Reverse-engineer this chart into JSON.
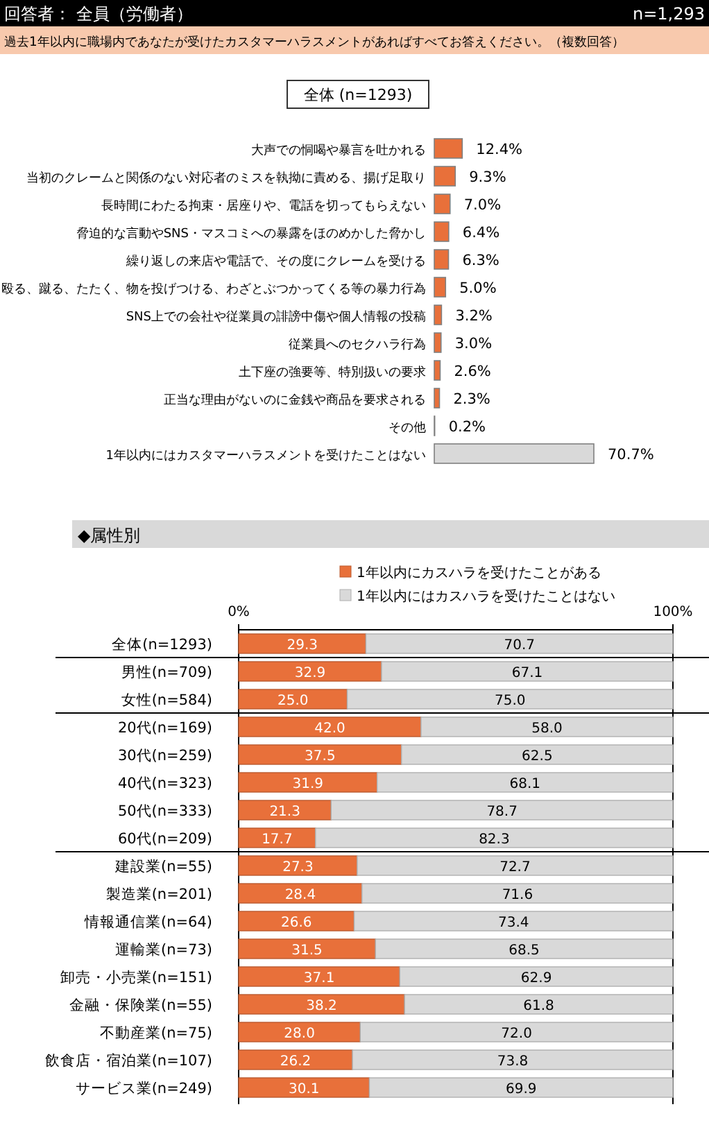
{
  "chart_data": [
    {
      "type": "bar",
      "orientation": "horizontal",
      "title": "全体 (n=1293)",
      "annotations": [
        "回答者： 全員（労働者）",
        "n=1,293",
        "過去1年以内に職場内であなたが受けたカスタマーハラスメントがあればすべてお答えください。（複数回答）"
      ],
      "categories": [
        "大声での恫喝や暴言を吐かれる",
        "当初のクレームと関係のない対応者のミスを執拗に責める、揚げ足取り",
        "長時間にわたる拘束・居座りや、電話を切ってもらえない",
        "脅迫的な言動やSNS・マスコミへの暴露をほのめかした脅かし",
        "繰り返しの来店や電話で、その度にクレームを受ける",
        "殴る、蹴る、たたく、物を投げつける、わざとぶつかってくる等の暴力行為",
        "SNS上での会社や従業員の誹謗中傷や個人情報の投稿",
        "従業員へのセクハラ行為",
        "土下座の強要等、特別扱いの要求",
        "正当な理由がないのに金銭や商品を要求される",
        "その他",
        "1年以内にはカスタマーハラスメントを受けたことはない"
      ],
      "values": [
        12.4,
        9.3,
        7.0,
        6.4,
        6.3,
        5.0,
        3.2,
        3.0,
        2.6,
        2.3,
        0.2,
        70.7
      ],
      "value_labels": [
        "12.4%",
        "9.3%",
        "7.0%",
        "6.4%",
        "6.3%",
        "5.0%",
        "3.2%",
        "3.0%",
        "2.6%",
        "2.3%",
        "0.2%",
        "70.7%"
      ],
      "colors": [
        "#e8703a",
        "#e8703a",
        "#e8703a",
        "#e8703a",
        "#e8703a",
        "#e8703a",
        "#e8703a",
        "#e8703a",
        "#e8703a",
        "#e8703a",
        "#e8703a",
        "#d9d9d9"
      ]
    },
    {
      "type": "bar",
      "orientation": "horizontal",
      "stacked": true,
      "title": "◆属性別",
      "legend": "top",
      "xlim": [
        0,
        100
      ],
      "xticks": [
        {
          "value": 0,
          "label": "0%"
        },
        {
          "value": 100,
          "label": "100%"
        }
      ],
      "categories": [
        "全体(n=1293)",
        "男性(n=709)",
        "女性(n=584)",
        "20代(n=169)",
        "30代(n=259)",
        "40代(n=323)",
        "50代(n=333)",
        "60代(n=209)",
        "建設業(n=55)",
        "製造業(n=201)",
        "情報通信業(n=64)",
        "運輸業(n=73)",
        "卸売・小売業(n=151)",
        "金融・保険業(n=55)",
        "不動産業(n=75)",
        "飲食店・宿泊業(n=107)",
        "サービス業(n=249)"
      ],
      "series": [
        {
          "name": "1年以内にカスハラを受けたことがある",
          "color": "#e8703a",
          "values": [
            29.3,
            32.9,
            25.0,
            42.0,
            37.5,
            31.9,
            21.3,
            17.7,
            27.3,
            28.4,
            26.6,
            31.5,
            37.1,
            38.2,
            28.0,
            26.2,
            30.1
          ],
          "value_labels": [
            "29.3",
            "32.9",
            "25.0",
            "42.0",
            "37.5",
            "31.9",
            "21.3",
            "17.7",
            "27.3",
            "28.4",
            "26.6",
            "31.5",
            "37.1",
            "38.2",
            "28.0",
            "26.2",
            "30.1"
          ]
        },
        {
          "name": "1年以内にはカスハラを受けたことはない",
          "color": "#d9d9d9",
          "values": [
            70.7,
            67.1,
            75.0,
            58.0,
            62.5,
            68.1,
            78.7,
            82.3,
            72.7,
            71.6,
            73.4,
            68.5,
            62.9,
            61.8,
            72.0,
            73.8,
            69.9
          ],
          "value_labels": [
            "70.7",
            "67.1",
            "75.0",
            "58.0",
            "62.5",
            "68.1",
            "78.7",
            "82.3",
            "72.7",
            "71.6",
            "73.4",
            "68.5",
            "62.9",
            "61.8",
            "72.0",
            "73.8",
            "69.9"
          ]
        }
      ]
    }
  ]
}
